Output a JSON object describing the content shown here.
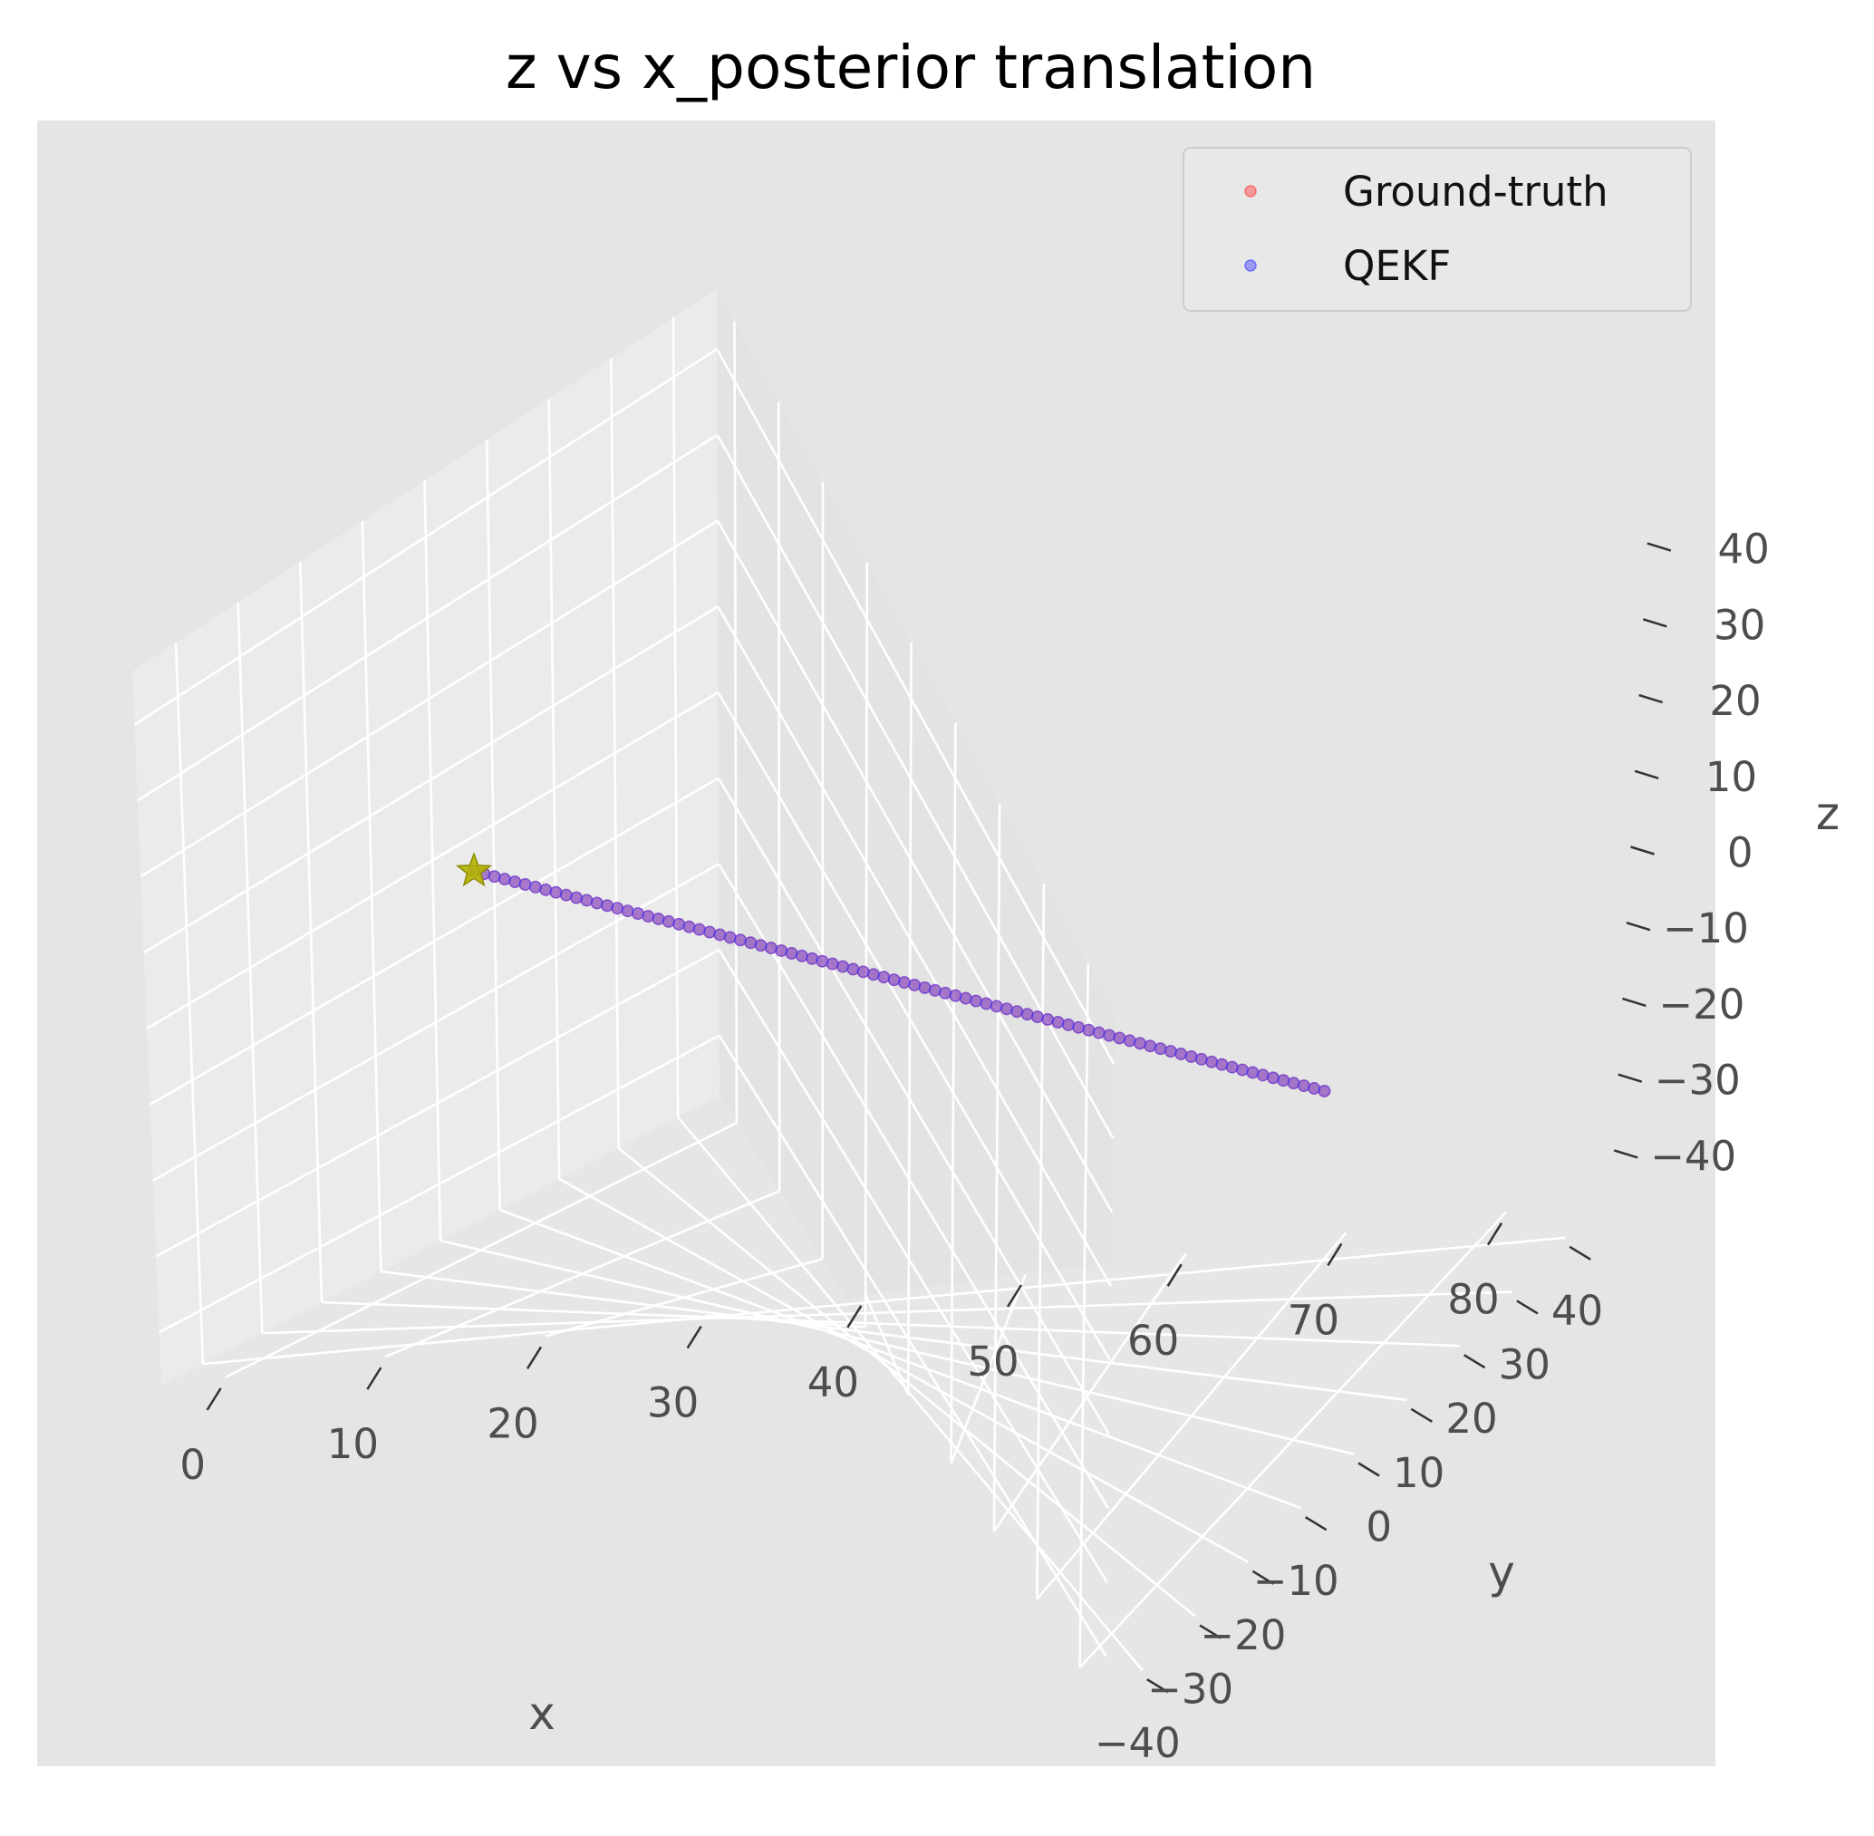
{
  "chart_data": {
    "type": "scatter",
    "projection": "3d",
    "title": "z vs x_posterior translation",
    "xlabel": "x",
    "ylabel": "y",
    "zlabel": "z",
    "xlim": [
      -4,
      86
    ],
    "ylim": [
      -47,
      47
    ],
    "zlim": [
      -47,
      47
    ],
    "xticks": [
      "0",
      "10",
      "20",
      "30",
      "40",
      "50",
      "60",
      "70",
      "80"
    ],
    "yticks": [
      "−40",
      "−30",
      "−20",
      "−10",
      "0",
      "10",
      "20",
      "30",
      "40"
    ],
    "zticks": [
      "−40",
      "−30",
      "−20",
      "−10",
      "0",
      "10",
      "20",
      "30",
      "40"
    ],
    "grid": true,
    "legend_position": "top-right",
    "series": [
      {
        "name": "Ground-truth",
        "color": "#ff3b3b",
        "marker": "circle",
        "x_start": 0,
        "x_end": 82,
        "y": 0,
        "z": 0,
        "count": 84
      },
      {
        "name": "QEKF",
        "color": "#3b3bff",
        "marker": "circle",
        "x_start": 0,
        "x_end": 82,
        "y": 0,
        "z": 0,
        "count": 84
      }
    ],
    "start_marker": {
      "marker": "star",
      "color": "#b5b500",
      "x": 0,
      "y": 0,
      "z": 0
    }
  }
}
